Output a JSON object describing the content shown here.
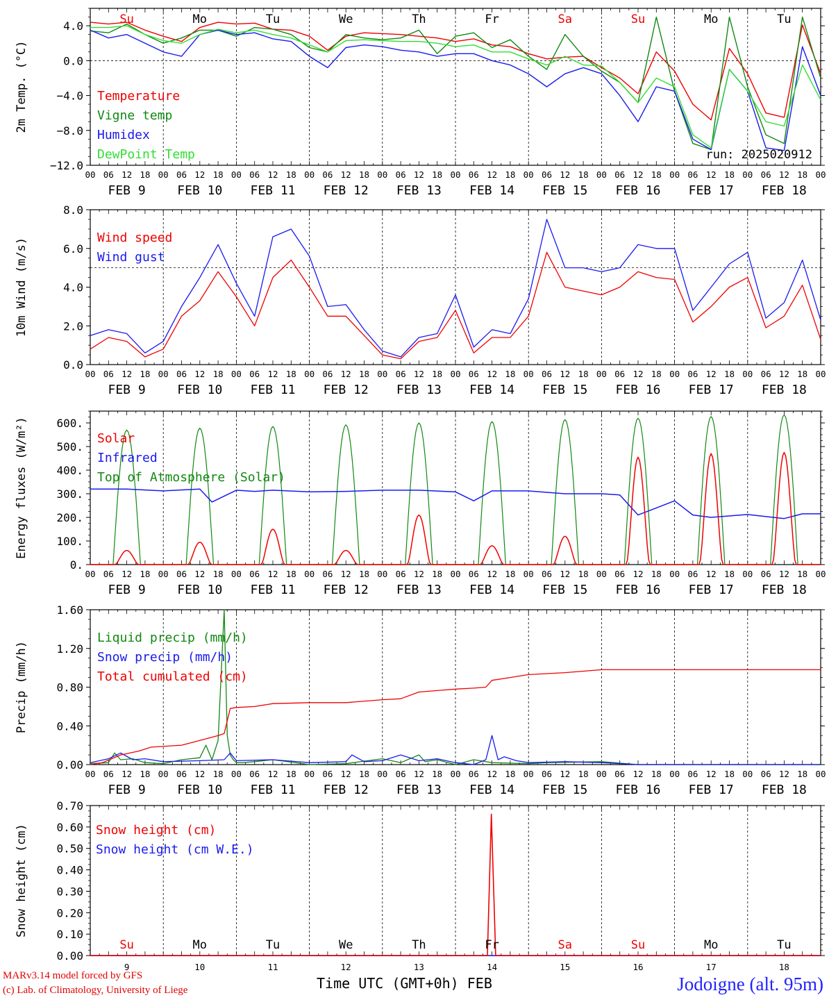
{
  "footer": {
    "credit_model": "MARv3.14 model forced by GFS",
    "credit_lab": "(c) Lab. of Climatology, University of Liege",
    "station": "Jodoigne (alt. 95m)",
    "time_axis_label": "Time UTC (GMT+0h) FEB"
  },
  "colors": {
    "red": "#ee0000",
    "green": "#118811",
    "blue": "#1a1aee",
    "lightgreen": "#33dd33",
    "axis": "#000000"
  },
  "chart_data": [
    {
      "type": "line",
      "ylabel": "2m Temp. (°C)",
      "ylim": [
        -12,
        6
      ],
      "yticks": [
        4.0,
        0.0,
        -4.0,
        -8.0,
        -12.0
      ],
      "ytick_labels": [
        "4.0",
        "0.0",
        "−4.0",
        "−8.0",
        "−12.0"
      ],
      "reference_line": 0,
      "annotation": "run: 2025020912",
      "day_labels": [
        "Su",
        "Mo",
        "Tu",
        "We",
        "Th",
        "Fr",
        "Sa",
        "Su",
        "Mo",
        "Tu"
      ],
      "day_label_colors": [
        "red",
        "black",
        "black",
        "black",
        "black",
        "black",
        "red",
        "red",
        "black",
        "black"
      ],
      "x_hour_ticks": [
        "00",
        "06",
        "12",
        "18"
      ],
      "date_labels": [
        "FEB  9",
        "FEB 10",
        "FEB 11",
        "FEB 12",
        "FEB 13",
        "FEB 14",
        "FEB 15",
        "FEB 16",
        "FEB 17",
        "FEB 18"
      ],
      "x_hours": [
        0,
        6,
        12,
        18,
        24,
        30,
        36,
        42,
        48,
        54,
        60,
        66,
        72,
        78,
        84,
        90,
        96,
        102,
        108,
        114,
        120,
        126,
        132,
        138,
        144,
        150,
        156,
        162,
        168,
        174,
        180,
        186,
        192,
        198,
        204,
        210,
        216,
        222,
        228,
        234,
        240
      ],
      "series": [
        {
          "name": "Temperature",
          "color": "red",
          "values": [
            4.4,
            4.2,
            4.4,
            3.5,
            2.8,
            2.2,
            3.8,
            4.4,
            4.2,
            4.3,
            3.6,
            3.5,
            2.8,
            1.2,
            2.8,
            3.2,
            3.1,
            3.0,
            2.8,
            2.6,
            2.2,
            2.5,
            1.8,
            1.6,
            0.8,
            0.2,
            0.4,
            0.5,
            -0.8,
            -2.0,
            -3.8,
            1.0,
            -1.2,
            -5.0,
            -6.8,
            1.4,
            -1.5,
            -6.0,
            -6.5,
            4.1,
            -1.5
          ]
        },
        {
          "name": "Vigne temp",
          "color": "green",
          "values": [
            3.4,
            3.2,
            4.2,
            3.0,
            2.0,
            2.6,
            3.5,
            3.5,
            2.8,
            3.8,
            3.6,
            3.0,
            1.5,
            1.0,
            3.0,
            2.6,
            2.4,
            2.6,
            3.5,
            0.8,
            2.8,
            3.2,
            1.5,
            2.4,
            0.5,
            -1.0,
            3.0,
            0.5,
            -1.2,
            -2.5,
            -4.8,
            5.0,
            -3.5,
            -9.5,
            -10.2,
            5.0,
            -3.0,
            -8.5,
            -9.5,
            5.0,
            -2.0
          ]
        },
        {
          "name": "Humidex",
          "color": "blue",
          "values": [
            3.5,
            2.6,
            3.0,
            2.0,
            1.0,
            0.5,
            3.0,
            3.5,
            3.0,
            3.2,
            2.5,
            2.2,
            0.5,
            -0.8,
            1.5,
            1.8,
            1.6,
            1.2,
            1.0,
            0.5,
            0.8,
            0.8,
            0.0,
            -0.5,
            -1.5,
            -3.0,
            -1.5,
            -0.8,
            -1.5,
            -4.0,
            -7.0,
            -3.0,
            -3.5,
            -9.0,
            -10.2,
            -1.0,
            -3.5,
            -10.0,
            -10.3,
            1.6,
            -4.0
          ]
        },
        {
          "name": "DewPoint Temp",
          "color": "lightgreen",
          "values": [
            3.8,
            3.8,
            4.0,
            3.0,
            2.3,
            2.0,
            3.0,
            3.6,
            3.2,
            3.5,
            3.0,
            2.6,
            1.8,
            1.0,
            2.3,
            2.4,
            2.3,
            2.2,
            2.2,
            2.0,
            1.6,
            1.8,
            1.0,
            1.0,
            0.2,
            -0.5,
            0.5,
            -0.5,
            -0.6,
            -2.5,
            -4.8,
            -2.0,
            -3.0,
            -8.5,
            -10.0,
            -1.0,
            -3.5,
            -7.0,
            -7.5,
            -0.5,
            -4.5
          ]
        }
      ]
    },
    {
      "type": "line",
      "ylabel": "10m Wind (m/s)",
      "ylim": [
        0,
        8
      ],
      "yticks": [
        8.0,
        6.0,
        4.0,
        2.0,
        0.0
      ],
      "ytick_labels": [
        "8.0",
        "6.0",
        "4.0",
        "2.0",
        "0.0"
      ],
      "reference_line": 5,
      "x_hour_ticks": [
        "00",
        "06",
        "12",
        "18"
      ],
      "date_labels": [
        "FEB  9",
        "FEB 10",
        "FEB 11",
        "FEB 12",
        "FEB 13",
        "FEB 14",
        "FEB 15",
        "FEB 16",
        "FEB 17",
        "FEB 18"
      ],
      "x_hours": [
        0,
        6,
        12,
        18,
        24,
        30,
        36,
        42,
        48,
        54,
        60,
        66,
        72,
        78,
        84,
        90,
        96,
        102,
        108,
        114,
        120,
        126,
        132,
        138,
        144,
        150,
        156,
        162,
        168,
        174,
        180,
        186,
        192,
        198,
        204,
        210,
        216,
        222,
        228,
        234,
        240
      ],
      "series": [
        {
          "name": "Wind speed",
          "color": "red",
          "values": [
            0.8,
            1.4,
            1.2,
            0.4,
            0.8,
            2.5,
            3.3,
            4.8,
            3.5,
            2.0,
            4.5,
            5.4,
            4.0,
            2.5,
            2.5,
            1.5,
            0.5,
            0.3,
            1.2,
            1.4,
            2.8,
            0.6,
            1.4,
            1.4,
            2.5,
            5.8,
            4.0,
            3.8,
            3.6,
            4.0,
            4.8,
            4.5,
            4.4,
            2.2,
            3.0,
            4.0,
            4.5,
            1.9,
            2.5,
            4.1,
            1.3
          ]
        },
        {
          "name": "Wind gust",
          "color": "blue",
          "values": [
            1.5,
            1.8,
            1.6,
            0.6,
            1.2,
            3.0,
            4.5,
            6.2,
            4.2,
            2.5,
            6.6,
            7.0,
            5.6,
            3.0,
            3.1,
            1.8,
            0.7,
            0.4,
            1.4,
            1.6,
            3.6,
            0.9,
            1.8,
            1.6,
            3.4,
            7.5,
            5.0,
            5.0,
            4.8,
            5.0,
            6.2,
            6.0,
            6.0,
            2.8,
            4.0,
            5.2,
            5.8,
            2.4,
            3.2,
            5.4,
            2.3
          ]
        }
      ]
    },
    {
      "type": "line",
      "ylabel": "Energy fluxes (W/m²)",
      "ylim": [
        0,
        650
      ],
      "yticks": [
        600,
        500,
        400,
        300,
        200,
        100,
        0
      ],
      "ytick_labels": [
        "600.",
        "500.",
        "400.",
        "300.",
        "200.",
        "100.",
        "0."
      ],
      "x_hour_ticks": [
        "00",
        "06",
        "12",
        "18"
      ],
      "date_labels": [
        "FEB  9",
        "FEB 10",
        "FEB 11",
        "FEB 12",
        "FEB 13",
        "FEB 14",
        "FEB 15",
        "FEB 16",
        "FEB 17",
        "FEB 18"
      ],
      "day_peaks": {
        "toa_solar": [
          570,
          578,
          585,
          592,
          600,
          606,
          614,
          620,
          627,
          634
        ],
        "solar": [
          60,
          95,
          150,
          60,
          210,
          80,
          120,
          455,
          470,
          475
        ]
      },
      "infrared_hours": [
        0,
        12,
        24,
        36,
        40,
        48,
        54,
        60,
        72,
        84,
        96,
        108,
        120,
        126,
        132,
        144,
        156,
        168,
        174,
        180,
        186,
        192,
        198,
        204,
        216,
        228,
        234,
        240
      ],
      "infrared_values": [
        320,
        320,
        312,
        320,
        265,
        315,
        310,
        315,
        308,
        310,
        315,
        315,
        308,
        270,
        312,
        312,
        300,
        300,
        295,
        210,
        240,
        270,
        210,
        200,
        212,
        195,
        215,
        215
      ],
      "series": [
        {
          "name": "Solar",
          "color": "red"
        },
        {
          "name": "Infrared",
          "color": "blue"
        },
        {
          "name": "Top of Atmosphere (Solar)",
          "color": "green"
        }
      ]
    },
    {
      "type": "line",
      "ylabel": "Precip (mm/h)",
      "ylim": [
        0,
        1.6
      ],
      "yticks": [
        1.6,
        1.2,
        0.8,
        0.4,
        0.0
      ],
      "ytick_labels": [
        "1.60",
        "1.20",
        "0.80",
        "0.40",
        "0.00"
      ],
      "x_hour_ticks": [
        "00",
        "06",
        "12",
        "18"
      ],
      "date_labels": [
        "FEB  9",
        "FEB 10",
        "FEB 11",
        "FEB 12",
        "FEB 13",
        "FEB 14",
        "FEB 15",
        "FEB 16",
        "FEB 17",
        "FEB 18"
      ],
      "series": [
        {
          "name": "Liquid precip (mm/h)",
          "color": "green",
          "x": [
            0,
            6,
            8,
            10,
            14,
            18,
            24,
            30,
            36,
            38,
            40,
            42,
            44,
            45,
            46,
            47,
            48,
            50,
            54,
            60,
            72,
            84,
            96,
            102,
            108,
            110,
            114,
            120,
            126,
            132,
            144,
            150,
            168,
            180,
            240
          ],
          "values": [
            0.01,
            0.02,
            0.12,
            0.05,
            0.06,
            0.02,
            0.01,
            0.05,
            0.07,
            0.2,
            0.05,
            0.25,
            1.6,
            0.3,
            0.1,
            0.05,
            0.02,
            0.02,
            0.03,
            0.05,
            0.0,
            0.01,
            0.06,
            0.02,
            0.1,
            0.03,
            0.05,
            0.0,
            0.05,
            0.02,
            0.01,
            0.02,
            0.03,
            0.0,
            0.0
          ]
        },
        {
          "name": "Snow precip (mm/h)",
          "color": "blue",
          "x": [
            0,
            6,
            10,
            14,
            18,
            24,
            36,
            44,
            46,
            48,
            60,
            72,
            84,
            86,
            90,
            96,
            102,
            108,
            114,
            120,
            126,
            130,
            132,
            134,
            136,
            140,
            144,
            156,
            168,
            180,
            240
          ],
          "values": [
            0.02,
            0.06,
            0.12,
            0.05,
            0.06,
            0.03,
            0.04,
            0.05,
            0.12,
            0.04,
            0.05,
            0.02,
            0.03,
            0.1,
            0.03,
            0.04,
            0.1,
            0.04,
            0.06,
            0.02,
            0.0,
            0.05,
            0.3,
            0.05,
            0.08,
            0.04,
            0.02,
            0.03,
            0.02,
            0.0,
            0.0
          ]
        },
        {
          "name": "Total cumulated (cm)",
          "color": "red",
          "x": [
            0,
            4,
            10,
            16,
            20,
            30,
            36,
            42,
            44,
            46,
            48,
            54,
            60,
            72,
            84,
            96,
            102,
            108,
            120,
            126,
            130,
            132,
            138,
            144,
            156,
            168,
            180,
            240
          ],
          "values": [
            0.0,
            0.02,
            0.1,
            0.14,
            0.18,
            0.2,
            0.25,
            0.3,
            0.32,
            0.58,
            0.59,
            0.6,
            0.63,
            0.64,
            0.64,
            0.67,
            0.68,
            0.75,
            0.78,
            0.79,
            0.8,
            0.87,
            0.9,
            0.93,
            0.95,
            0.98,
            0.98,
            0.98
          ]
        }
      ]
    },
    {
      "type": "line",
      "ylabel": "Snow height (cm)",
      "ylim": [
        0,
        0.7
      ],
      "yticks": [
        0.7,
        0.6,
        0.5,
        0.4,
        0.3,
        0.2,
        0.1,
        0.0
      ],
      "ytick_labels": [
        "0.70",
        "0.60",
        "0.50",
        "0.40",
        "0.30",
        "0.20",
        "0.10",
        "0.00"
      ],
      "day_labels": [
        "Su",
        "Mo",
        "Tu",
        "We",
        "Th",
        "Fr",
        "Sa",
        "Su",
        "Mo",
        "Tu"
      ],
      "day_label_colors": [
        "red",
        "black",
        "black",
        "black",
        "black",
        "black",
        "red",
        "red",
        "black",
        "black"
      ],
      "day_numbers": [
        "9",
        "10",
        "11",
        "12",
        "13",
        "14",
        "15",
        "16",
        "17",
        "18"
      ],
      "series": [
        {
          "name": "Snow height (cm)",
          "color": "red",
          "x": [
            0,
            130.5,
            131.8,
            133.2,
            240
          ],
          "values": [
            0,
            0,
            0.66,
            0,
            0
          ]
        },
        {
          "name": "Snow height (cm W.E.)",
          "color": "blue",
          "x": [
            0,
            240
          ],
          "values": [
            0,
            0
          ]
        }
      ]
    }
  ]
}
